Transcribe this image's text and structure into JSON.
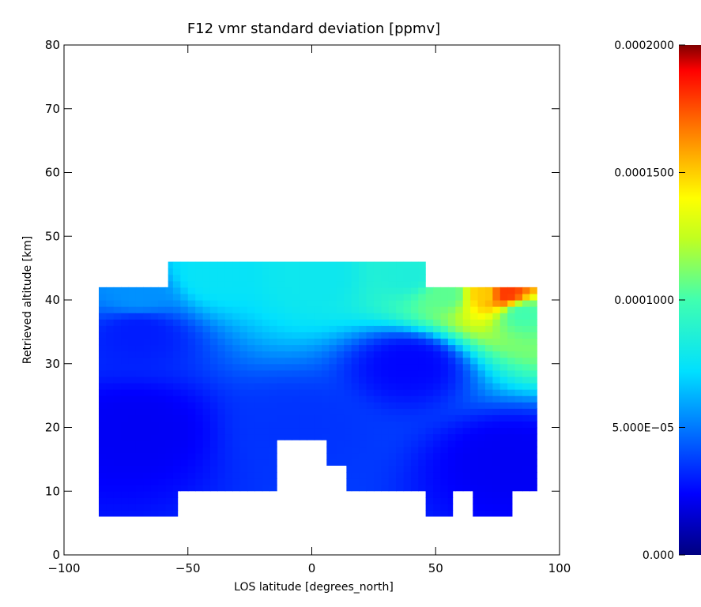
{
  "chart_data": {
    "type": "heatmap",
    "title": "F12 vmr standard deviation [ppmv]",
    "xlabel": "LOS latitude [degrees_north]",
    "ylabel": "Retrieved altitude [km]",
    "xlim": [
      -100,
      100
    ],
    "ylim": [
      0,
      80
    ],
    "x_ticks": [
      -100,
      -50,
      0,
      50,
      100
    ],
    "y_ticks": [
      0,
      10,
      20,
      30,
      40,
      50,
      60,
      70,
      80
    ],
    "x_tick_labels": [
      "−100",
      "−50",
      "0",
      "50",
      "100"
    ],
    "y_tick_labels": [
      "0",
      "10",
      "20",
      "30",
      "40",
      "50",
      "60",
      "70",
      "80"
    ],
    "grid": false,
    "colorbar": {
      "colormap": "rainbow (dark blue to dark red)",
      "range": [
        0.0,
        0.0002
      ],
      "tick_values": [
        0.0,
        5e-05,
        0.0001,
        0.00015,
        0.0002
      ],
      "tick_labels": [
        "0.000",
        "5.000E−05",
        "0.0001000",
        "0.0001500",
        "0.0002000"
      ]
    },
    "coverage_columns": [
      {
        "lat": [
          -86,
          -58
        ],
        "alt": [
          6,
          42
        ]
      },
      {
        "lat": [
          -58,
          -54
        ],
        "alt": [
          6,
          46
        ]
      },
      {
        "lat": [
          -54,
          -14
        ],
        "alt": [
          10,
          46
        ]
      },
      {
        "lat": [
          -14,
          6
        ],
        "alt": [
          18,
          46
        ]
      },
      {
        "lat": [
          6,
          14
        ],
        "alt": [
          14,
          46
        ]
      },
      {
        "lat": [
          14,
          46
        ],
        "alt": [
          10,
          46
        ]
      },
      {
        "lat": [
          46,
          57
        ],
        "alt": [
          6,
          42
        ]
      },
      {
        "lat": [
          57,
          65
        ],
        "alt": [
          10,
          42
        ]
      },
      {
        "lat": [
          65,
          81
        ],
        "alt": [
          6,
          42
        ]
      },
      {
        "lat": [
          81,
          91
        ],
        "alt": [
          10,
          42
        ]
      }
    ],
    "field_points": [
      {
        "lat": -70,
        "alt": 20,
        "value": 2.2e-05
      },
      {
        "lat": -70,
        "alt": 35,
        "value": 3e-05
      },
      {
        "lat": -70,
        "alt": 41,
        "value": 5.5e-05
      },
      {
        "lat": -40,
        "alt": 44,
        "value": 7.5e-05
      },
      {
        "lat": -5,
        "alt": 20,
        "value": 3.5e-05
      },
      {
        "lat": 0,
        "alt": 44,
        "value": 7.8e-05
      },
      {
        "lat": 40,
        "alt": 44,
        "value": 8.5e-05
      },
      {
        "lat": 40,
        "alt": 30,
        "value": 2.5e-05
      },
      {
        "lat": 55,
        "alt": 41,
        "value": 0.000105
      },
      {
        "lat": 70,
        "alt": 41,
        "value": 0.00015
      },
      {
        "lat": 78,
        "alt": 41,
        "value": 0.00018
      },
      {
        "lat": 85,
        "alt": 38,
        "value": 0.0001
      },
      {
        "lat": 80,
        "alt": 15,
        "value": 2.2e-05
      }
    ]
  }
}
